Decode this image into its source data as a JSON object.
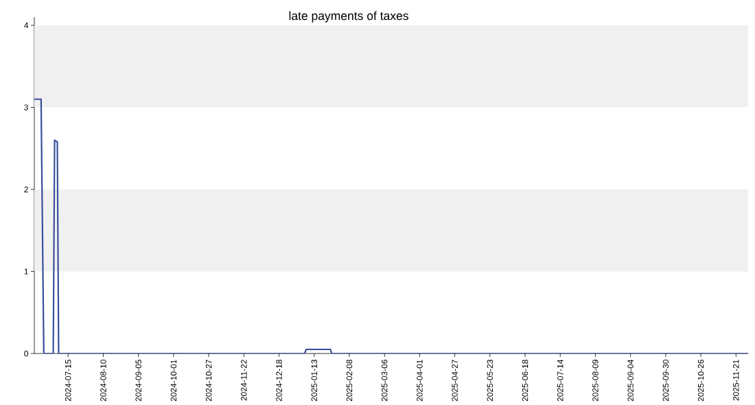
{
  "chart_data": {
    "type": "line",
    "title": "late payments of taxes",
    "x": [
      "2024-06-20",
      "2024-06-25",
      "2024-06-27",
      "2024-07-04",
      "2024-07-05",
      "2024-07-07",
      "2024-07-08",
      "2025-01-06",
      "2025-01-07",
      "2025-01-25",
      "2025-01-26",
      "2025-11-30"
    ],
    "values": [
      3.1,
      3.1,
      0,
      0,
      2.6,
      2.58,
      0,
      0,
      0.05,
      0.05,
      0,
      0
    ],
    "color": "#3a4d9c",
    "line_style": "solid",
    "xlim": [
      "2024-06-20",
      "2025-11-30"
    ],
    "ylim": [
      0,
      4.1
    ],
    "xticks": [
      "2024-07-15",
      "2024-08-10",
      "2024-09-05",
      "2024-10-01",
      "2024-10-27",
      "2024-11-22",
      "2024-12-18",
      "2025-01-13",
      "2025-02-08",
      "2025-03-06",
      "2025-04-01",
      "2025-04-27",
      "2025-05-23",
      "2025-06-18",
      "2025-07-14",
      "2025-08-09",
      "2025-09-04",
      "2025-09-30",
      "2025-10-26",
      "2025-11-21"
    ],
    "yticks": [
      0,
      1,
      2,
      3,
      4
    ],
    "bands": [
      {
        "axis": "y",
        "from": 1,
        "to": 2,
        "color": "#f0f0f0"
      },
      {
        "axis": "y",
        "from": 3,
        "to": 4,
        "color": "#f0f0f0"
      }
    ]
  }
}
